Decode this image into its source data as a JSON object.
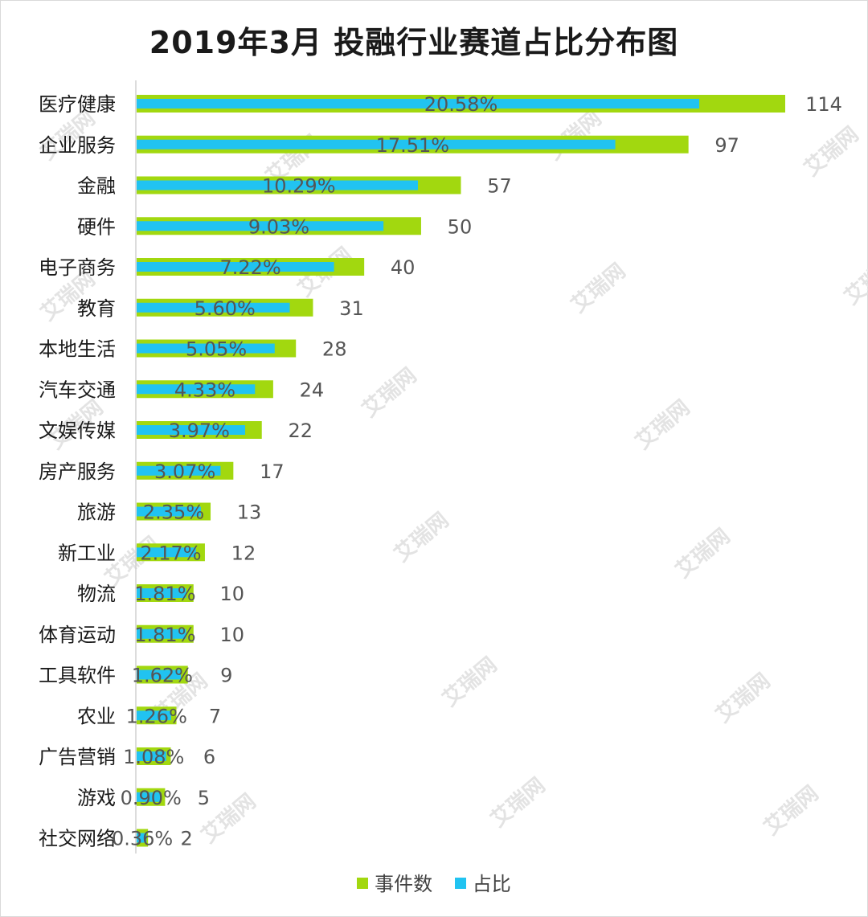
{
  "chart_data": {
    "type": "bar",
    "orientation": "horizontal",
    "title": "2019年3月 投融行业赛道占比分布图",
    "categories": [
      "医疗健康",
      "企业服务",
      "金融",
      "硬件",
      "电子商务",
      "教育",
      "本地生活",
      "汽车交通",
      "文娱传媒",
      "房产服务",
      "旅游",
      "新工业",
      "物流",
      "体育运动",
      "工具软件",
      "农业",
      "广告营销",
      "游戏",
      "社交网络"
    ],
    "series": [
      {
        "name": "事件数",
        "color": "#a2d80f",
        "values": [
          114,
          97,
          57,
          50,
          40,
          31,
          28,
          24,
          22,
          17,
          13,
          12,
          10,
          10,
          9,
          7,
          6,
          5,
          2
        ]
      },
      {
        "name": "占比",
        "color": "#21c3f1",
        "values": [
          20.58,
          17.51,
          10.29,
          9.03,
          7.22,
          5.6,
          5.05,
          4.33,
          3.97,
          3.07,
          2.35,
          2.17,
          1.81,
          1.81,
          1.62,
          1.26,
          1.08,
          0.9,
          0.36
        ]
      }
    ],
    "pct_labels": [
      "20.58%",
      "17.51%",
      "10.29%",
      "9.03%",
      "7.22%",
      "5.60%",
      "5.05%",
      "4.33%",
      "3.97%",
      "3.07%",
      "2.35%",
      "2.17%",
      "1.81%",
      "1.81%",
      "1.62%",
      "1.26%",
      "1.08%",
      "0.90%",
      "0.36%"
    ],
    "count_labels": [
      "114",
      "97",
      "57",
      "50",
      "40",
      "31",
      "28",
      "24",
      "22",
      "17",
      "13",
      "12",
      "10",
      "10",
      "9",
      "7",
      "6",
      "5",
      "2"
    ],
    "xlim_count": [
      0,
      114
    ],
    "xlim_pct": [
      0,
      20.58
    ],
    "legend_position": "bottom",
    "grid": false
  },
  "watermark_text": "艾瑞网"
}
